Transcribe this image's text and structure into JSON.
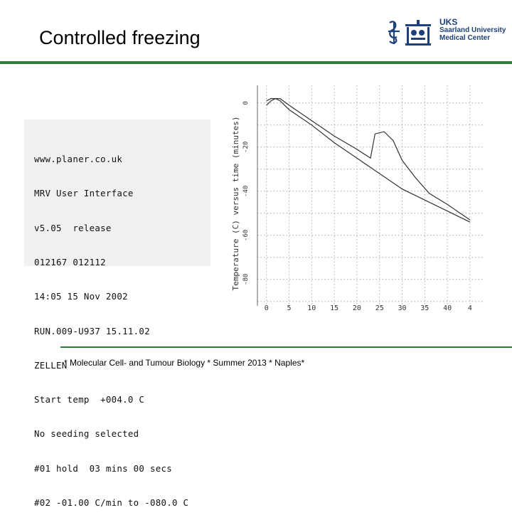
{
  "slide": {
    "title": "Controlled freezing",
    "footer": "* Molecular Cell- and Tumour Biology * Summer 2013 * Naples*"
  },
  "logo": {
    "line1": "UKS",
    "line2": "Saarland University",
    "line3": "Medical Center",
    "color": "#1d3f7a"
  },
  "colors": {
    "accent_rule": "#2e7d3a"
  },
  "printout": {
    "lines": [
      "www.planer.co.uk",
      "MRV User Interface",
      "v5.05  release",
      "012167 012112",
      "14:05 15 Nov 2002",
      "RUN.009-U937 15.11.02",
      "ZELLEN",
      "Start temp  +004.0 C",
      "No seeding selected",
      "#01 hold  03 mins 00 secs",
      "#02 -01.00 C/min to -080.0 C"
    ]
  },
  "chart_data": {
    "type": "line",
    "ylabel": "Temperature (C) versus time (minutes)",
    "y_ticks": [
      "0",
      "-20",
      "-40",
      "-60",
      "-80"
    ],
    "x_ticks": [
      "0",
      "5",
      "10",
      "15",
      "20",
      "25",
      "30",
      "35",
      "40",
      "4"
    ],
    "ylim": [
      -92,
      8
    ],
    "xlim": [
      -2,
      48
    ],
    "grid": true,
    "series": [
      {
        "x": [
          0,
          1,
          3,
          5,
          10,
          15,
          20,
          23,
          24,
          26,
          28,
          30,
          33,
          36,
          40,
          45
        ],
        "y": [
          1,
          2,
          2,
          -1,
          -8,
          -15,
          -21,
          -25,
          -14,
          -13,
          -17,
          -26,
          -34,
          -41,
          -46,
          -53
        ]
      },
      {
        "x": [
          0,
          1,
          2,
          3,
          5,
          10,
          15,
          20,
          25,
          30,
          35,
          40,
          45
        ],
        "y": [
          -1,
          1,
          2,
          1,
          -3,
          -10,
          -18,
          -25,
          -32,
          -39,
          -44,
          -49,
          -54
        ]
      }
    ]
  }
}
